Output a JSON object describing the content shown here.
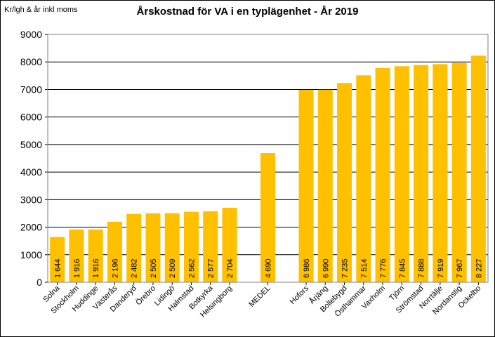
{
  "chart_data": {
    "type": "bar",
    "title": "Årskostnad för VA i en typlägenhet - År 2019",
    "ylabel": "Kr/lgh & år inkl moms",
    "xlabel": "",
    "ylim": [
      0,
      9000
    ],
    "yticks": [
      0,
      1000,
      2000,
      3000,
      4000,
      5000,
      6000,
      7000,
      8000,
      9000
    ],
    "grid": true,
    "bar_color": "#FFC000",
    "categories": [
      "Solna",
      "Stockholm",
      "Huddinge",
      "Västerås",
      "Danderyd",
      "Örebro",
      "Lidingö",
      "Halmstad",
      "Botkyrka",
      "Helsingborg",
      "",
      "MEDEL",
      "",
      "Hofors",
      "Årjäng",
      "Bollebygd",
      "Östhammar",
      "Vaxholm",
      "Tjörn",
      "Strömstad",
      "Norrtälje",
      "Nordanstig",
      "Ockelbo"
    ],
    "values": [
      1644,
      1916,
      1916,
      2196,
      2482,
      2505,
      2509,
      2562,
      2577,
      2704,
      null,
      4690,
      null,
      6986,
      6990,
      7235,
      7514,
      7776,
      7845,
      7888,
      7919,
      7967,
      8227
    ],
    "value_labels": [
      "1 644",
      "1 916",
      "1 916",
      "2 196",
      "2 482",
      "2 505",
      "2 509",
      "2 562",
      "2 577",
      "2 704",
      "",
      "4 690",
      "",
      "6 986",
      "6 990",
      "7 235",
      "7 514",
      "7 776",
      "7 845",
      "7 888",
      "7 919",
      "7 967",
      "8 227"
    ]
  }
}
